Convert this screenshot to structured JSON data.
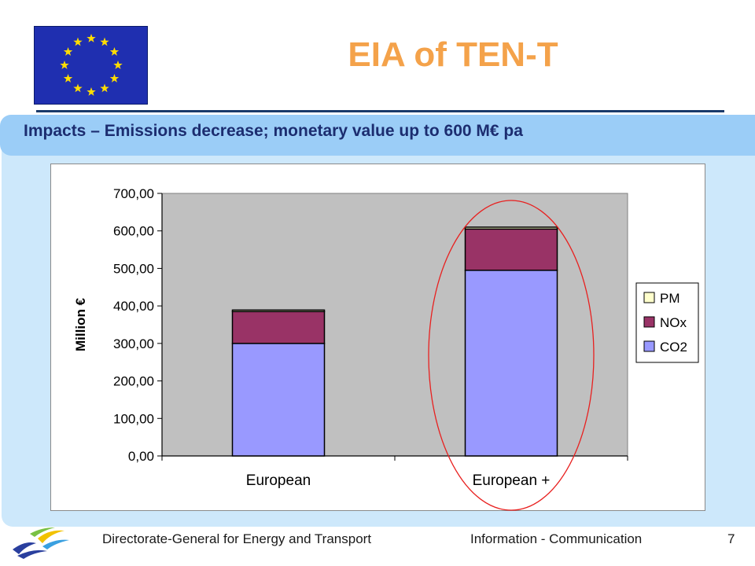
{
  "slide": {
    "title": "EIA of TEN-T",
    "subtitle": "Impacts – Emissions decrease; monetary value up to 600 M€ pa"
  },
  "flag": {
    "icon": "eu-flag-icon",
    "stars": 12,
    "colors": {
      "field": "#1f2fb0",
      "stars": "#ffdd00"
    }
  },
  "footer": {
    "left_text": "Directorate-General for Energy and Transport",
    "center_text": "Information - Communication",
    "page_number": "7",
    "logo_icon": "dg-transport-logo-icon"
  },
  "chart_data": {
    "type": "bar",
    "stacked": true,
    "categories": [
      "European",
      "European +"
    ],
    "series": [
      {
        "name": "CO2",
        "values": [
          300,
          495
        ],
        "color": "#9999ff"
      },
      {
        "name": "NOx",
        "values": [
          85,
          110
        ],
        "color": "#993366"
      },
      {
        "name": "PM",
        "values": [
          4,
          5
        ],
        "color": "#ffffcc"
      }
    ],
    "ylabel": "Million €",
    "xlabel": "",
    "ylim": [
      0,
      700
    ],
    "yticks": [
      "0,00",
      "100,00",
      "200,00",
      "300,00",
      "400,00",
      "500,00",
      "600,00",
      "700,00"
    ],
    "legend": {
      "position": "right",
      "order": [
        "PM",
        "NOx",
        "CO2"
      ]
    },
    "grid": false,
    "plot_background": "#c0c0c0",
    "highlight": {
      "shape": "ellipse",
      "category": "European +",
      "color": "#e8201f"
    }
  }
}
